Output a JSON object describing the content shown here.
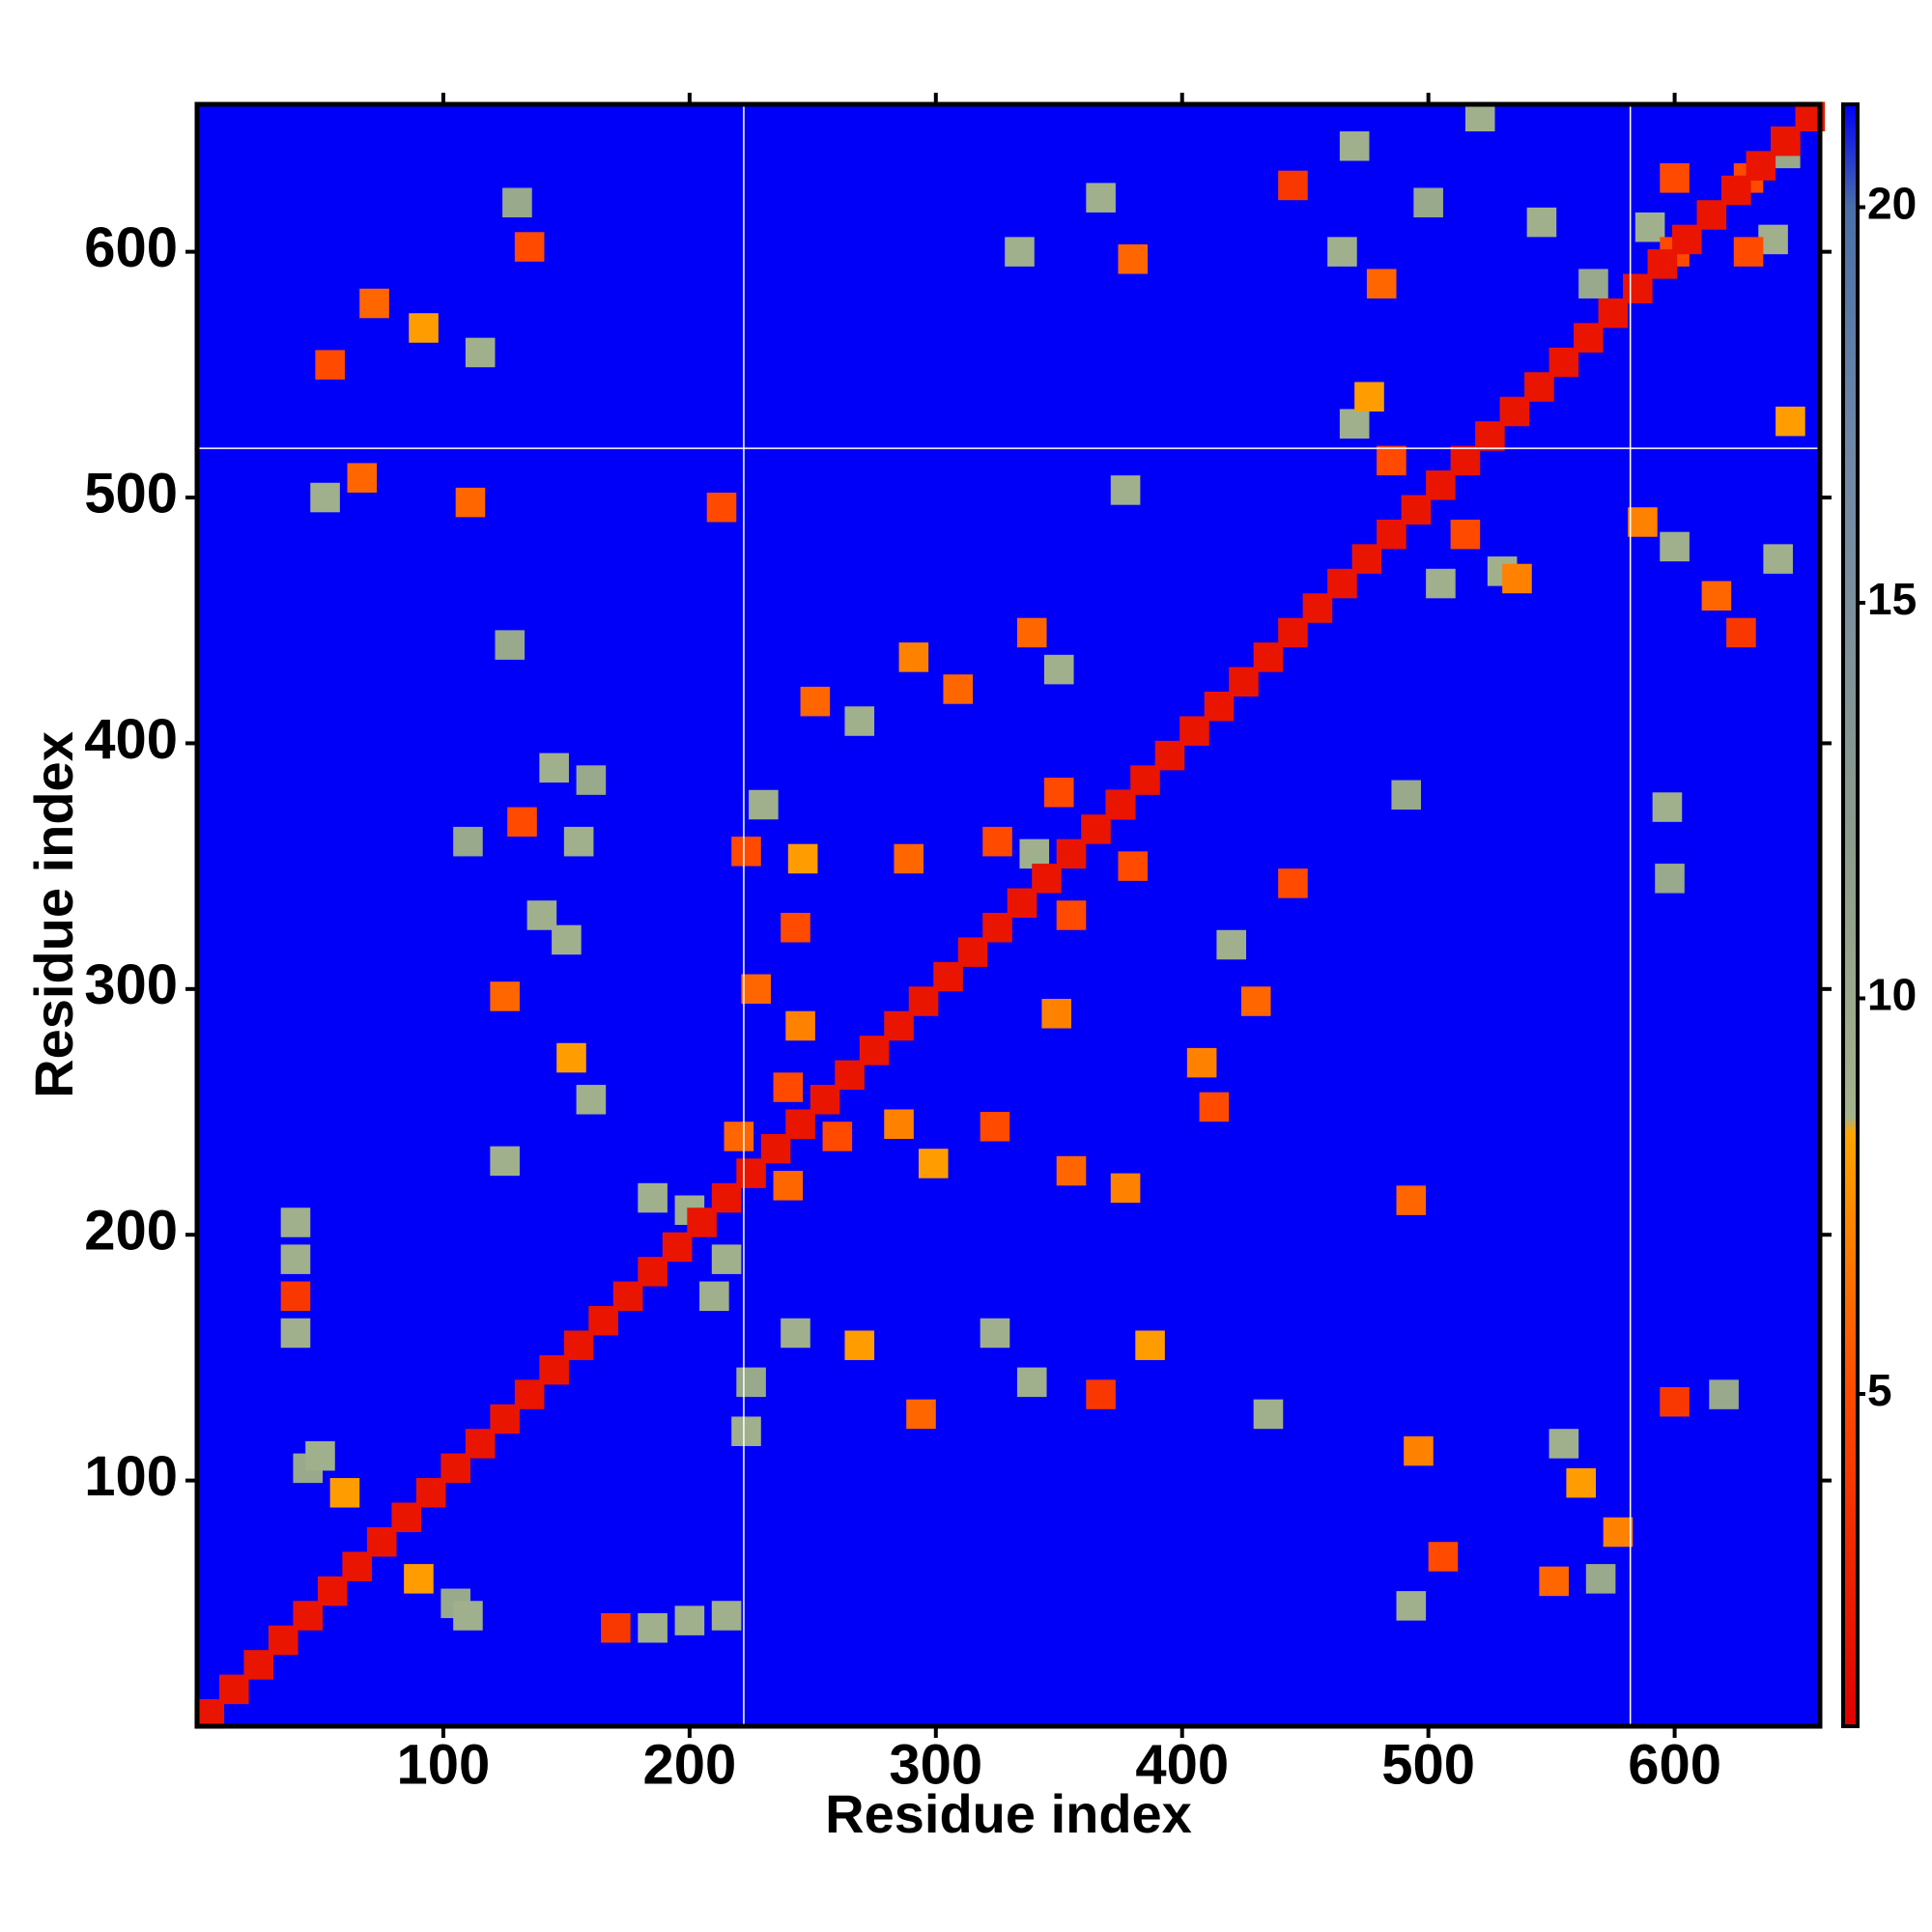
{
  "chart_data": {
    "type": "heatmap",
    "xlabel": "Residue index",
    "ylabel": "Residue index",
    "xlim": [
      0,
      659
    ],
    "ylim": [
      0,
      660
    ],
    "xticks": [
      100,
      200,
      300,
      400,
      500,
      600
    ],
    "yticks": [
      100,
      200,
      300,
      400,
      500,
      600
    ],
    "zlim": [
      0.8,
      21.3
    ],
    "colorbar_ticks": [
      5,
      10,
      15,
      20
    ],
    "colorscale": [
      [
        0.8,
        "#e00000"
      ],
      [
        5,
        "#ff4a00"
      ],
      [
        8.3,
        "#ffa500"
      ],
      [
        8.5,
        "#a3b38c"
      ],
      [
        12,
        "#8c9c8c"
      ],
      [
        17,
        "#6f88a8"
      ],
      [
        20,
        "#4a6fa8"
      ],
      [
        21.3,
        "#0000f8"
      ]
    ],
    "vlines": [
      222,
      582
    ],
    "hlines": [
      520
    ],
    "cells": [
      {
        "x": 5,
        "y": 5,
        "value": 2
      },
      {
        "x": 15,
        "y": 15,
        "value": 2
      },
      {
        "x": 25,
        "y": 25,
        "value": 2
      },
      {
        "x": 35,
        "y": 35,
        "value": 2
      },
      {
        "x": 45,
        "y": 45,
        "value": 2
      },
      {
        "x": 55,
        "y": 55,
        "value": 2
      },
      {
        "x": 65,
        "y": 65,
        "value": 2
      },
      {
        "x": 75,
        "y": 75,
        "value": 2
      },
      {
        "x": 85,
        "y": 85,
        "value": 2
      },
      {
        "x": 95,
        "y": 95,
        "value": 2
      },
      {
        "x": 105,
        "y": 105,
        "value": 2
      },
      {
        "x": 115,
        "y": 115,
        "value": 2
      },
      {
        "x": 125,
        "y": 125,
        "value": 2
      },
      {
        "x": 135,
        "y": 135,
        "value": 2
      },
      {
        "x": 145,
        "y": 145,
        "value": 2
      },
      {
        "x": 155,
        "y": 155,
        "value": 2
      },
      {
        "x": 165,
        "y": 165,
        "value": 2
      },
      {
        "x": 175,
        "y": 175,
        "value": 2
      },
      {
        "x": 185,
        "y": 185,
        "value": 2
      },
      {
        "x": 195,
        "y": 195,
        "value": 2
      },
      {
        "x": 205,
        "y": 205,
        "value": 2
      },
      {
        "x": 215,
        "y": 215,
        "value": 2
      },
      {
        "x": 225,
        "y": 225,
        "value": 2
      },
      {
        "x": 235,
        "y": 235,
        "value": 2
      },
      {
        "x": 245,
        "y": 245,
        "value": 2
      },
      {
        "x": 255,
        "y": 255,
        "value": 2
      },
      {
        "x": 265,
        "y": 265,
        "value": 2
      },
      {
        "x": 275,
        "y": 275,
        "value": 2
      },
      {
        "x": 285,
        "y": 285,
        "value": 2
      },
      {
        "x": 295,
        "y": 295,
        "value": 2
      },
      {
        "x": 305,
        "y": 305,
        "value": 2
      },
      {
        "x": 315,
        "y": 315,
        "value": 2
      },
      {
        "x": 325,
        "y": 325,
        "value": 2
      },
      {
        "x": 335,
        "y": 335,
        "value": 2
      },
      {
        "x": 345,
        "y": 345,
        "value": 2
      },
      {
        "x": 355,
        "y": 355,
        "value": 2
      },
      {
        "x": 365,
        "y": 365,
        "value": 2
      },
      {
        "x": 375,
        "y": 375,
        "value": 2
      },
      {
        "x": 385,
        "y": 385,
        "value": 2
      },
      {
        "x": 395,
        "y": 395,
        "value": 2
      },
      {
        "x": 405,
        "y": 405,
        "value": 2
      },
      {
        "x": 415,
        "y": 415,
        "value": 2
      },
      {
        "x": 425,
        "y": 425,
        "value": 2
      },
      {
        "x": 435,
        "y": 435,
        "value": 2
      },
      {
        "x": 445,
        "y": 445,
        "value": 2
      },
      {
        "x": 455,
        "y": 455,
        "value": 2
      },
      {
        "x": 465,
        "y": 465,
        "value": 2
      },
      {
        "x": 475,
        "y": 475,
        "value": 2
      },
      {
        "x": 485,
        "y": 485,
        "value": 2
      },
      {
        "x": 495,
        "y": 495,
        "value": 2
      },
      {
        "x": 505,
        "y": 505,
        "value": 2
      },
      {
        "x": 515,
        "y": 515,
        "value": 2
      },
      {
        "x": 525,
        "y": 525,
        "value": 2
      },
      {
        "x": 535,
        "y": 535,
        "value": 2
      },
      {
        "x": 545,
        "y": 545,
        "value": 2
      },
      {
        "x": 555,
        "y": 555,
        "value": 2
      },
      {
        "x": 565,
        "y": 565,
        "value": 2
      },
      {
        "x": 575,
        "y": 575,
        "value": 2
      },
      {
        "x": 585,
        "y": 585,
        "value": 2
      },
      {
        "x": 595,
        "y": 595,
        "value": 2
      },
      {
        "x": 605,
        "y": 605,
        "value": 2
      },
      {
        "x": 615,
        "y": 615,
        "value": 2
      },
      {
        "x": 625,
        "y": 625,
        "value": 2
      },
      {
        "x": 635,
        "y": 635,
        "value": 2
      },
      {
        "x": 645,
        "y": 645,
        "value": 2
      },
      {
        "x": 655,
        "y": 655,
        "value": 2
      },
      {
        "x": 50,
        "y": 110,
        "value": 9
      },
      {
        "x": 60,
        "y": 95,
        "value": 8
      },
      {
        "x": 90,
        "y": 60,
        "value": 8
      },
      {
        "x": 110,
        "y": 45,
        "value": 9
      },
      {
        "x": 45,
        "y": 105,
        "value": 10
      },
      {
        "x": 105,
        "y": 50,
        "value": 10
      },
      {
        "x": 40,
        "y": 160,
        "value": 9
      },
      {
        "x": 40,
        "y": 175,
        "value": 4
      },
      {
        "x": 40,
        "y": 190,
        "value": 9
      },
      {
        "x": 40,
        "y": 205,
        "value": 9
      },
      {
        "x": 170,
        "y": 40,
        "value": 4
      },
      {
        "x": 185,
        "y": 40,
        "value": 9
      },
      {
        "x": 200,
        "y": 43,
        "value": 9
      },
      {
        "x": 215,
        "y": 45,
        "value": 9
      },
      {
        "x": 125,
        "y": 230,
        "value": 9
      },
      {
        "x": 152,
        "y": 272,
        "value": 8
      },
      {
        "x": 160,
        "y": 255,
        "value": 9
      },
      {
        "x": 125,
        "y": 297,
        "value": 6
      },
      {
        "x": 132,
        "y": 368,
        "value": 5
      },
      {
        "x": 145,
        "y": 390,
        "value": 9
      },
      {
        "x": 155,
        "y": 360,
        "value": 9
      },
      {
        "x": 140,
        "y": 330,
        "value": 9
      },
      {
        "x": 150,
        "y": 320,
        "value": 9
      },
      {
        "x": 110,
        "y": 360,
        "value": 10
      },
      {
        "x": 160,
        "y": 385,
        "value": 10
      },
      {
        "x": 127,
        "y": 440,
        "value": 10
      },
      {
        "x": 52,
        "y": 500,
        "value": 9
      },
      {
        "x": 67,
        "y": 508,
        "value": 6
      },
      {
        "x": 111,
        "y": 498,
        "value": 6
      },
      {
        "x": 213,
        "y": 496,
        "value": 5
      },
      {
        "x": 54,
        "y": 554,
        "value": 5
      },
      {
        "x": 72,
        "y": 579,
        "value": 6
      },
      {
        "x": 92,
        "y": 569,
        "value": 8
      },
      {
        "x": 115,
        "y": 559,
        "value": 9
      },
      {
        "x": 135,
        "y": 602,
        "value": 5
      },
      {
        "x": 130,
        "y": 620,
        "value": 10
      },
      {
        "x": 200,
        "y": 210,
        "value": 9
      },
      {
        "x": 215,
        "y": 190,
        "value": 9
      },
      {
        "x": 185,
        "y": 215,
        "value": 9
      },
      {
        "x": 210,
        "y": 175,
        "value": 9
      },
      {
        "x": 220,
        "y": 240,
        "value": 6
      },
      {
        "x": 240,
        "y": 220,
        "value": 6
      },
      {
        "x": 240,
        "y": 260,
        "value": 5
      },
      {
        "x": 260,
        "y": 240,
        "value": 5
      },
      {
        "x": 245,
        "y": 285,
        "value": 7
      },
      {
        "x": 285,
        "y": 245,
        "value": 7
      },
      {
        "x": 223,
        "y": 120,
        "value": 9
      },
      {
        "x": 225,
        "y": 140,
        "value": 10
      },
      {
        "x": 243,
        "y": 160,
        "value": 9
      },
      {
        "x": 269,
        "y": 155,
        "value": 8
      },
      {
        "x": 294,
        "y": 127,
        "value": 6
      },
      {
        "x": 339,
        "y": 140,
        "value": 9
      },
      {
        "x": 367,
        "y": 135,
        "value": 4
      },
      {
        "x": 387,
        "y": 155,
        "value": 8
      },
      {
        "x": 324,
        "y": 160,
        "value": 9
      },
      {
        "x": 435,
        "y": 127,
        "value": 9
      },
      {
        "x": 496,
        "y": 112,
        "value": 7
      },
      {
        "x": 493,
        "y": 214,
        "value": 6
      },
      {
        "x": 506,
        "y": 69,
        "value": 5
      },
      {
        "x": 493,
        "y": 49,
        "value": 9
      },
      {
        "x": 551,
        "y": 59,
        "value": 6
      },
      {
        "x": 562,
        "y": 99,
        "value": 8
      },
      {
        "x": 577,
        "y": 79,
        "value": 7
      },
      {
        "x": 555,
        "y": 115,
        "value": 9
      },
      {
        "x": 570,
        "y": 60,
        "value": 10
      },
      {
        "x": 600,
        "y": 132,
        "value": 4
      },
      {
        "x": 620,
        "y": 135,
        "value": 10
      },
      {
        "x": 597,
        "y": 374,
        "value": 9
      },
      {
        "x": 598,
        "y": 345,
        "value": 10
      },
      {
        "x": 491,
        "y": 379,
        "value": 10
      },
      {
        "x": 617,
        "y": 460,
        "value": 6
      },
      {
        "x": 627,
        "y": 445,
        "value": 4
      },
      {
        "x": 587,
        "y": 490,
        "value": 7
      },
      {
        "x": 642,
        "y": 475,
        "value": 9
      },
      {
        "x": 600,
        "y": 480,
        "value": 9
      },
      {
        "x": 647,
        "y": 531,
        "value": 8
      },
      {
        "x": 485,
        "y": 515,
        "value": 5
      },
      {
        "x": 515,
        "y": 485,
        "value": 5
      },
      {
        "x": 470,
        "y": 530,
        "value": 9
      },
      {
        "x": 530,
        "y": 470,
        "value": 9
      },
      {
        "x": 476,
        "y": 541,
        "value": 8
      },
      {
        "x": 536,
        "y": 467,
        "value": 7
      },
      {
        "x": 505,
        "y": 465,
        "value": 9
      },
      {
        "x": 445,
        "y": 627,
        "value": 4
      },
      {
        "x": 470,
        "y": 643,
        "value": 9
      },
      {
        "x": 481,
        "y": 587,
        "value": 6
      },
      {
        "x": 521,
        "y": 655,
        "value": 9
      },
      {
        "x": 546,
        "y": 612,
        "value": 9
      },
      {
        "x": 465,
        "y": 600,
        "value": 9
      },
      {
        "x": 500,
        "y": 620,
        "value": 10
      },
      {
        "x": 600,
        "y": 600,
        "value": 5
      },
      {
        "x": 630,
        "y": 630,
        "value": 5
      },
      {
        "x": 600,
        "y": 630,
        "value": 5
      },
      {
        "x": 630,
        "y": 600,
        "value": 5
      },
      {
        "x": 590,
        "y": 610,
        "value": 9
      },
      {
        "x": 640,
        "y": 605,
        "value": 9
      },
      {
        "x": 567,
        "y": 587,
        "value": 10
      },
      {
        "x": 645,
        "y": 640,
        "value": 10
      },
      {
        "x": 334,
        "y": 600,
        "value": 9
      },
      {
        "x": 380,
        "y": 597,
        "value": 6
      },
      {
        "x": 367,
        "y": 622,
        "value": 9
      },
      {
        "x": 377,
        "y": 503,
        "value": 9
      },
      {
        "x": 339,
        "y": 445,
        "value": 6
      },
      {
        "x": 350,
        "y": 430,
        "value": 9
      },
      {
        "x": 291,
        "y": 435,
        "value": 7
      },
      {
        "x": 309,
        "y": 422,
        "value": 6
      },
      {
        "x": 251,
        "y": 417,
        "value": 6
      },
      {
        "x": 269,
        "y": 409,
        "value": 9
      },
      {
        "x": 223,
        "y": 356,
        "value": 5
      },
      {
        "x": 243,
        "y": 325,
        "value": 5
      },
      {
        "x": 246,
        "y": 353,
        "value": 8
      },
      {
        "x": 289,
        "y": 353,
        "value": 6
      },
      {
        "x": 230,
        "y": 375,
        "value": 9
      },
      {
        "x": 350,
        "y": 380,
        "value": 5
      },
      {
        "x": 380,
        "y": 350,
        "value": 5
      },
      {
        "x": 355,
        "y": 330,
        "value": 5
      },
      {
        "x": 325,
        "y": 360,
        "value": 5
      },
      {
        "x": 340,
        "y": 355,
        "value": 9
      },
      {
        "x": 375,
        "y": 375,
        "value": 9
      },
      {
        "x": 227,
        "y": 300,
        "value": 6
      },
      {
        "x": 299,
        "y": 229,
        "value": 8
      },
      {
        "x": 324,
        "y": 244,
        "value": 5
      },
      {
        "x": 355,
        "y": 226,
        "value": 6
      },
      {
        "x": 377,
        "y": 219,
        "value": 7
      },
      {
        "x": 349,
        "y": 290,
        "value": 7
      },
      {
        "x": 408,
        "y": 270,
        "value": 7
      },
      {
        "x": 413,
        "y": 252,
        "value": 5
      },
      {
        "x": 430,
        "y": 295,
        "value": 6
      },
      {
        "x": 420,
        "y": 318,
        "value": 9
      },
      {
        "x": 445,
        "y": 343,
        "value": 5
      }
    ]
  }
}
